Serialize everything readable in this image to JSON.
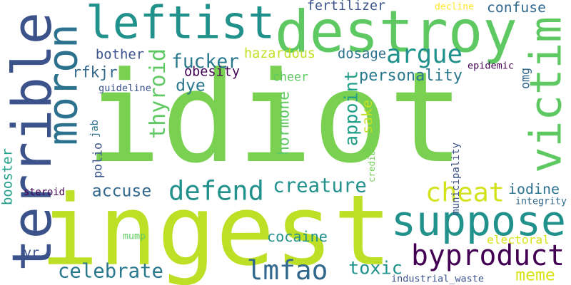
{
  "words": [
    {
      "text": "idiot",
      "color": "#7ad151"
    },
    {
      "text": "ingest",
      "color": "#bddf26"
    },
    {
      "text": "destroy",
      "color": "#5ec962"
    },
    {
      "text": "terrible",
      "color": "#3b528b"
    },
    {
      "text": "leftist",
      "color": "#21918c"
    },
    {
      "text": "moron",
      "color": "#2c728e"
    },
    {
      "text": "suppose",
      "color": "#21918c"
    },
    {
      "text": "victim",
      "color": "#5ec962"
    },
    {
      "text": "byproduct",
      "color": "#440154"
    },
    {
      "text": "cheat",
      "color": "#d2e21b"
    },
    {
      "text": "defend",
      "color": "#21918c"
    },
    {
      "text": "argue",
      "color": "#21918c"
    },
    {
      "text": "lmfao",
      "color": "#31688e"
    },
    {
      "text": "celebrate",
      "color": "#2a788e"
    },
    {
      "text": "thyroid",
      "color": "#5ec962"
    },
    {
      "text": "creature",
      "color": "#21918c"
    },
    {
      "text": "fucker",
      "color": "#2a788e"
    },
    {
      "text": "personality",
      "color": "#2a788e"
    },
    {
      "text": "appoint",
      "color": "#1f9e89"
    },
    {
      "text": "toxic",
      "color": "#21918c"
    },
    {
      "text": "meme",
      "color": "#d8e219"
    },
    {
      "text": "confuse",
      "color": "#31688e"
    },
    {
      "text": "accuse",
      "color": "#31688e"
    },
    {
      "text": "dye",
      "color": "#2a788e"
    },
    {
      "text": "cocaine",
      "color": "#21918c"
    },
    {
      "text": "hazardous",
      "color": "#c2df23"
    },
    {
      "text": "fertilizer",
      "color": "#3b528b"
    },
    {
      "text": "dosage",
      "color": "#2c728e"
    },
    {
      "text": "bother",
      "color": "#3b528b"
    },
    {
      "text": "iodine",
      "color": "#2c728e"
    },
    {
      "text": "hormone",
      "color": "#5ec962"
    },
    {
      "text": "electoral",
      "color": "#d8e219"
    },
    {
      "text": "yr",
      "color": "#3b528b"
    },
    {
      "text": "obesity",
      "color": "#440154"
    },
    {
      "text": "rfkjr",
      "color": "#31688e"
    },
    {
      "text": "jab",
      "color": "#2c728e"
    },
    {
      "text": "sake",
      "color": "#c2df23"
    },
    {
      "text": "cheer",
      "color": "#5ec962"
    },
    {
      "text": "integrity",
      "color": "#31688e"
    },
    {
      "text": "industrial_waste",
      "color": "#3b528b"
    },
    {
      "text": "epidemic",
      "color": "#440154"
    },
    {
      "text": "polio",
      "color": "#3b528b"
    },
    {
      "text": "municipality",
      "color": "#3b528b"
    },
    {
      "text": "booster",
      "color": "#1f9e89"
    },
    {
      "text": "steroid",
      "color": "#440154"
    },
    {
      "text": "omg",
      "color": "#31688e"
    },
    {
      "text": "decline",
      "color": "#fde725"
    },
    {
      "text": "guideline",
      "color": "#3b528b"
    },
    {
      "text": "credible",
      "color": "#73d056"
    },
    {
      "text": "mump",
      "color": "#5ec962"
    }
  ]
}
